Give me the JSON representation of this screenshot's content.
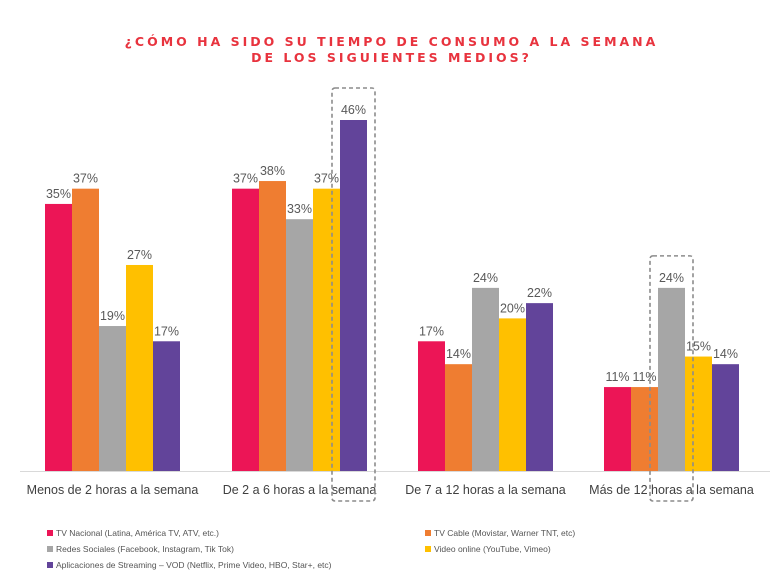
{
  "title_line1": "¿CÓMO HA SIDO SU TIEMPO DE CONSUMO A LA SEMANA",
  "title_line2": "DE LOS SIGUIENTES MEDIOS?",
  "chart_data": {
    "type": "bar",
    "title": "¿CÓMO HA SIDO SU TIEMPO DE CONSUMO A LA SEMANA DE LOS SIGUIENTES MEDIOS?",
    "categories": [
      "Menos de 2 horas a la semana",
      "De 2 a 6 horas a la semana",
      "De 7 a 12 horas a la semana",
      "Más de 12 horas a la semana"
    ],
    "series": [
      {
        "name": "TV Nacional (Latina, América TV, ATV, etc.)",
        "color": "#ec1556",
        "values": [
          35,
          37,
          17,
          11
        ],
        "labels": [
          "35%",
          "37%",
          "17%",
          "11%"
        ]
      },
      {
        "name": "TV Cable (Movistar, Warner TNT, etc)",
        "color": "#ef7d31",
        "values": [
          37,
          38,
          14,
          11
        ],
        "labels": [
          "37%",
          "38%",
          "14%",
          "11%"
        ]
      },
      {
        "name": "Redes Sociales (Facebook, Instagram, Tik Tok)",
        "color": "#a6a6a6",
        "values": [
          19,
          33,
          24,
          24
        ],
        "labels": [
          "19%",
          "33%",
          "24%",
          "24%"
        ]
      },
      {
        "name": "Video online (YouTube, Vimeo)",
        "color": "#ffc000",
        "values": [
          27,
          37,
          20,
          15
        ],
        "labels": [
          "27%",
          "37%",
          "20%",
          "15%"
        ]
      },
      {
        "name": "Aplicaciones de Streaming – VOD (Netflix, Prime Video, HBO, Star+, etc)",
        "color": "#62449a",
        "values": [
          17,
          46,
          22,
          14
        ],
        "labels": [
          "17%",
          "46%",
          "22%",
          "14%"
        ]
      }
    ],
    "ylim": [
      0,
      46
    ],
    "grid": false,
    "legend_position": "bottom",
    "highlights": [
      {
        "category": "De 2 a 6 horas a la semana",
        "series": "Aplicaciones de Streaming – VOD (Netflix, Prime Video, HBO, Star+, etc)"
      },
      {
        "category": "Más de 12 horas a la semana",
        "series": "Redes Sociales (Facebook, Instagram, Tik Tok)"
      }
    ]
  }
}
